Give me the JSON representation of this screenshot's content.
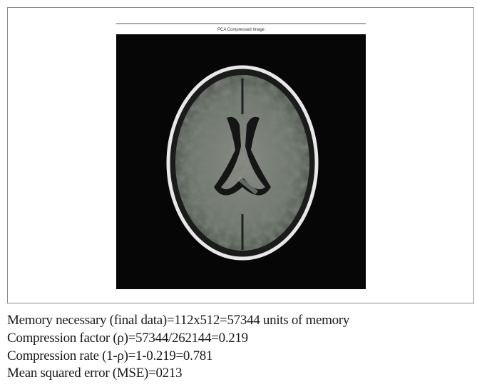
{
  "figure": {
    "title": "PCA Compressed Image"
  },
  "lines": [
    "Memory necessary (final data)=112x512=57344 units of memory",
    "Compression factor (ρ)=57344/262144=0.219",
    "Compression rate (1-ρ)=1-0.219=0.781",
    "Mean squared error (MSE)=0213"
  ]
}
